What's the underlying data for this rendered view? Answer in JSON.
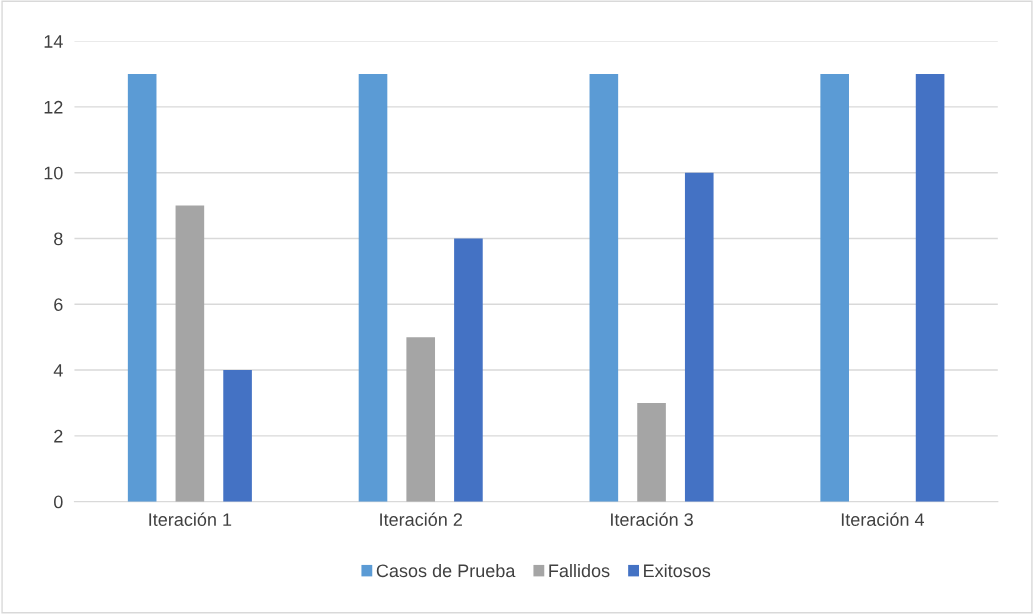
{
  "chart_data": {
    "type": "bar",
    "categories": [
      "Iteración 1",
      "Iteración 2",
      "Iteración 3",
      "Iteración 4"
    ],
    "series": [
      {
        "name": "Casos de Prueba",
        "color": "#5b9bd5",
        "values": [
          13,
          13,
          13,
          13
        ]
      },
      {
        "name": "Fallidos",
        "color": "#a5a5a5",
        "values": [
          9,
          5,
          3,
          0
        ]
      },
      {
        "name": "Exitosos",
        "color": "#4472c4",
        "values": [
          4,
          8,
          10,
          13
        ]
      }
    ],
    "ylim": [
      0,
      14
    ],
    "yticks": [
      0,
      2,
      4,
      6,
      8,
      10,
      12,
      14
    ],
    "grid": "y",
    "legend": "bottom"
  }
}
